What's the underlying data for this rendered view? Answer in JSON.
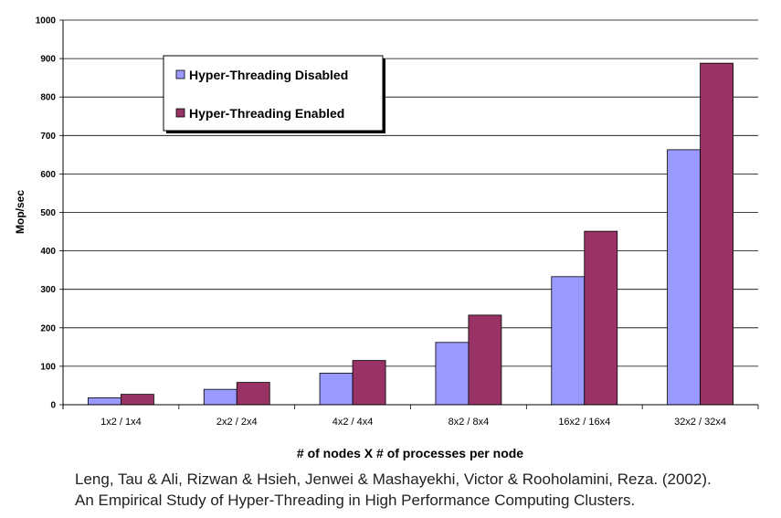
{
  "chart_data": {
    "type": "bar",
    "title": "",
    "xlabel": "# of nodes X # of processes per node",
    "ylabel": "Mop/sec",
    "ylim": [
      0,
      1000
    ],
    "yticks": [
      0,
      100,
      200,
      300,
      400,
      500,
      600,
      700,
      800,
      900,
      1000
    ],
    "grid": true,
    "legend_position": "top-left",
    "categories": [
      "1x2 / 1x4",
      "2x2 / 2x4",
      "4x2 / 4x4",
      "8x2 / 8x4",
      "16x2 / 16x4",
      "32x2 / 32x4"
    ],
    "series": [
      {
        "name": "Hyper-Threading Disabled",
        "color": "#9999ff",
        "values": [
          18,
          40,
          82,
          162,
          333,
          663
        ]
      },
      {
        "name": "Hyper-Threading Enabled",
        "color": "#993366",
        "values": [
          27,
          58,
          115,
          233,
          451,
          888
        ]
      }
    ]
  },
  "citation": {
    "line1": "Leng, Tau & Ali, Rizwan & Hsieh, Jenwei & Mashayekhi, Victor & Rooholamini, Reza. (2002).",
    "line2": "An Empirical Study of Hyper-Threading in High Performance Computing Clusters."
  }
}
